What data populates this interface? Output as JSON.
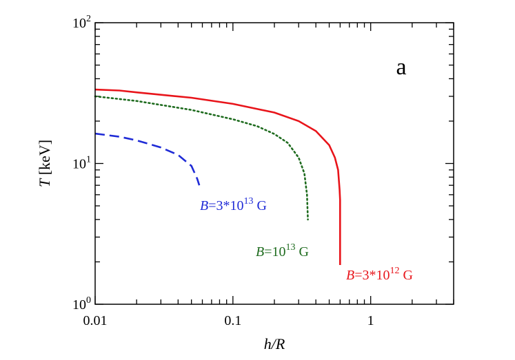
{
  "chart_data": {
    "type": "line",
    "panel_label": "a",
    "xlabel": {
      "italic": "h/R",
      "rest": ""
    },
    "ylabel": {
      "italic": "T",
      "rest": " [keV]"
    },
    "x_scale": "log",
    "y_scale": "log",
    "xlim": [
      0.01,
      4
    ],
    "ylim": [
      1,
      100
    ],
    "x_ticks": [
      {
        "value": 0.01,
        "label": "0.01"
      },
      {
        "value": 0.1,
        "label": "0.1"
      },
      {
        "value": 1,
        "label": "1"
      }
    ],
    "y_ticks": [
      {
        "value": 1,
        "base": "10",
        "exp": "0"
      },
      {
        "value": 10,
        "base": "10",
        "exp": "1"
      },
      {
        "value": 100,
        "base": "10",
        "exp": "2"
      }
    ],
    "grid": false,
    "series": [
      {
        "label_italic": "B",
        "label_rest": "=3*10",
        "label_exp": "13",
        "label_unit": " G",
        "color": "#1f2bd6",
        "style": "dashed",
        "points": [
          [
            0.01,
            16.3
          ],
          [
            0.015,
            15.5
          ],
          [
            0.02,
            14.6
          ],
          [
            0.03,
            13.0
          ],
          [
            0.04,
            11.5
          ],
          [
            0.05,
            9.6
          ],
          [
            0.055,
            7.8
          ],
          [
            0.057,
            7.0
          ]
        ]
      },
      {
        "label_italic": "B",
        "label_rest": "=10",
        "label_exp": "13",
        "label_unit": " G",
        "color": "#1e6b1e",
        "style": "dotted",
        "points": [
          [
            0.01,
            30.0
          ],
          [
            0.02,
            27.8
          ],
          [
            0.05,
            24.0
          ],
          [
            0.1,
            20.6
          ],
          [
            0.15,
            18.4
          ],
          [
            0.2,
            16.2
          ],
          [
            0.25,
            14.0
          ],
          [
            0.3,
            11.0
          ],
          [
            0.33,
            8.5
          ],
          [
            0.345,
            6.0
          ],
          [
            0.35,
            4.0
          ]
        ]
      },
      {
        "label_italic": "B",
        "label_rest": "=3*10",
        "label_exp": "12",
        "label_unit": " G",
        "color": "#e8141a",
        "style": "solid",
        "points": [
          [
            0.01,
            33.5
          ],
          [
            0.015,
            33.0
          ],
          [
            0.02,
            32.0
          ],
          [
            0.05,
            29.3
          ],
          [
            0.1,
            26.5
          ],
          [
            0.2,
            23.0
          ],
          [
            0.3,
            20.0
          ],
          [
            0.4,
            17.0
          ],
          [
            0.5,
            13.5
          ],
          [
            0.55,
            11.0
          ],
          [
            0.58,
            9.0
          ],
          [
            0.595,
            6.5
          ],
          [
            0.6,
            5.5
          ],
          [
            0.6,
            1.9
          ]
        ]
      }
    ]
  }
}
